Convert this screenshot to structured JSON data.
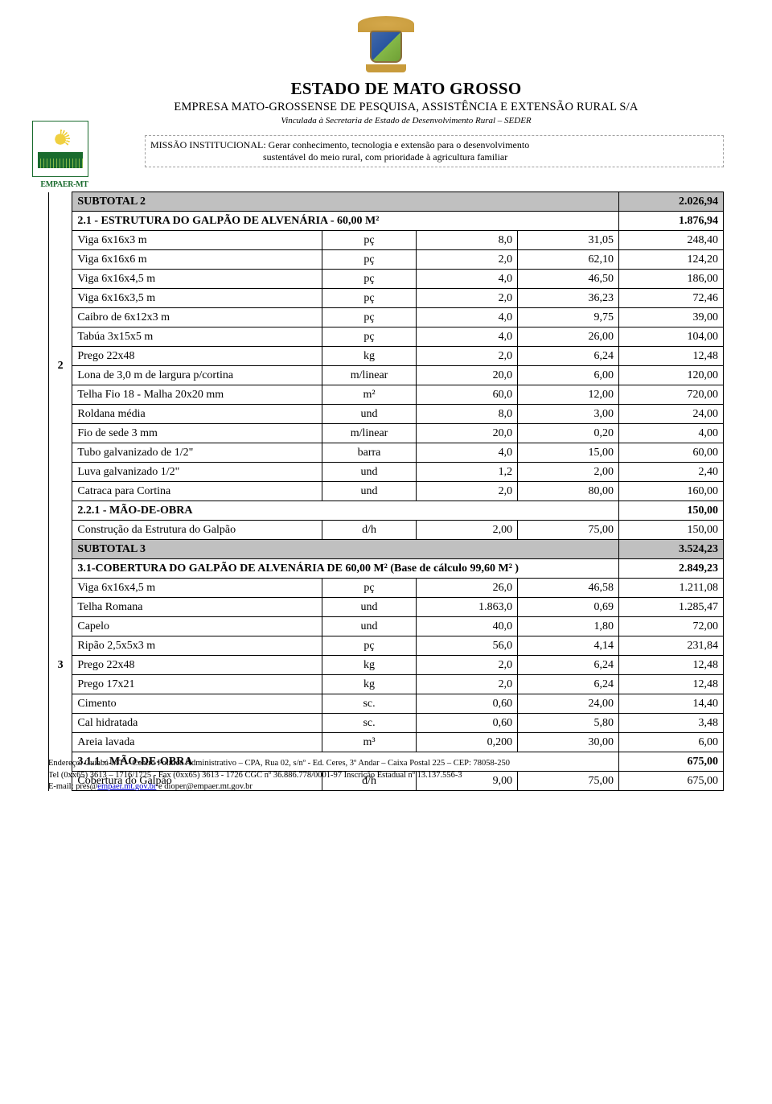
{
  "header": {
    "title": "ESTADO DE  MATO GROSSO",
    "subtitle": "EMPRESA MATO-GROSSENSE DE PESQUISA, ASSISTÊNCIA E EXTENSÃO RURAL S/A",
    "linked": "Vinculada à Secretaria de Estado de Desenvolvimento Rural – SEDER",
    "mission_label": "MISSÃO INSTITUCIONAL:",
    "mission_text1": " Gerar conhecimento, tecnologia  e extensão para  o desenvolvimento",
    "mission_text2": "sustentável do meio rural, com  prioridade  à  agricultura  familiar",
    "logo_text": "EMPAER-MT"
  },
  "groups": [
    {
      "idx": "2",
      "subtotal": {
        "label": "SUBTOTAL 2",
        "value": "2.026,94"
      },
      "sections": [
        {
          "section": {
            "label": "2.1 - ESTRUTURA DO GALPÃO DE ALVENÁRIA - 60,00 M²",
            "value": "1.876,94"
          },
          "rows": [
            {
              "desc": "Viga 6x16x3 m",
              "unit": "pç",
              "qty": "8,0",
              "price": "31,05",
              "total": "248,40"
            },
            {
              "desc": "Viga 6x16x6 m",
              "unit": "pç",
              "qty": "2,0",
              "price": "62,10",
              "total": "124,20"
            },
            {
              "desc": "Viga 6x16x4,5 m",
              "unit": "pç",
              "qty": "4,0",
              "price": "46,50",
              "total": "186,00"
            },
            {
              "desc": "Viga 6x16x3,5 m",
              "unit": "pç",
              "qty": "2,0",
              "price": "36,23",
              "total": "72,46"
            },
            {
              "desc": "Caibro de 6x12x3 m",
              "unit": "pç",
              "qty": "4,0",
              "price": "9,75",
              "total": "39,00"
            },
            {
              "desc": "Tabúa 3x15x5 m",
              "unit": "pç",
              "qty": "4,0",
              "price": "26,00",
              "total": "104,00"
            },
            {
              "desc": "Prego 22x48",
              "unit": "kg",
              "qty": "2,0",
              "price": "6,24",
              "total": "12,48"
            },
            {
              "desc": "Lona de 3,0 m de largura p/cortina",
              "unit": "m/linear",
              "qty": "20,0",
              "price": "6,00",
              "total": "120,00"
            },
            {
              "desc": "Telha Fio 18 - Malha 20x20 mm",
              "unit": "m²",
              "qty": "60,0",
              "price": "12,00",
              "total": "720,00"
            },
            {
              "desc": "Roldana média",
              "unit": "und",
              "qty": "8,0",
              "price": "3,00",
              "total": "24,00"
            },
            {
              "desc": "Fio de sede 3 mm",
              "unit": "m/linear",
              "qty": "20,0",
              "price": "0,20",
              "total": "4,00"
            },
            {
              "desc": "Tubo galvanizado de 1/2\"",
              "unit": "barra",
              "qty": "4,0",
              "price": "15,00",
              "total": "60,00"
            },
            {
              "desc": "Luva galvanizado 1/2\"",
              "unit": "und",
              "qty": "1,2",
              "price": "2,00",
              "total": "2,40"
            },
            {
              "desc": "Catraca para Cortina",
              "unit": "und",
              "qty": "2,0",
              "price": "80,00",
              "total": "160,00"
            }
          ]
        },
        {
          "section": {
            "label": "2.2.1 - MÃO-DE-OBRA",
            "value": "150,00"
          },
          "rows": [
            {
              "desc": "Construção da Estrutura do Galpão",
              "unit": "d/h",
              "qty": "2,00",
              "price": "75,00",
              "total": "150,00"
            }
          ]
        }
      ]
    },
    {
      "idx": "3",
      "subtotal": {
        "label": "SUBTOTAL 3",
        "value": "3.524,23"
      },
      "sections": [
        {
          "section": {
            "label": "3.1-COBERTURA DO GALPÃO DE ALVENÁRIA DE 60,00 M²  (Base de cálculo 99,60 M² )",
            "value": "2.849,23"
          },
          "rows": [
            {
              "desc": "Viga 6x16x4,5 m",
              "unit": "pç",
              "qty": "26,0",
              "price": "46,58",
              "total": "1.211,08"
            },
            {
              "desc": "Telha Romana",
              "unit": "und",
              "qty": "1.863,0",
              "price": "0,69",
              "total": "1.285,47"
            },
            {
              "desc": "Capelo",
              "unit": "und",
              "qty": "40,0",
              "price": "1,80",
              "total": "72,00"
            },
            {
              "desc": "Ripão 2,5x5x3 m",
              "unit": "pç",
              "qty": "56,0",
              "price": "4,14",
              "total": "231,84"
            },
            {
              "desc": "Prego 22x48",
              "unit": "kg",
              "qty": "2,0",
              "price": "6,24",
              "total": "12,48"
            },
            {
              "desc": "Prego 17x21",
              "unit": "kg",
              "qty": "2,0",
              "price": "6,24",
              "total": "12,48"
            },
            {
              "desc": "Cimento",
              "unit": "sc.",
              "qty": "0,60",
              "price": "24,00",
              "total": "14,40"
            },
            {
              "desc": "Cal hidratada",
              "unit": "sc.",
              "qty": "0,60",
              "price": "5,80",
              "total": "3,48"
            },
            {
              "desc": "Areia lavada",
              "unit": "m³",
              "qty": "0,200",
              "price": "30,00",
              "total": "6,00"
            }
          ]
        },
        {
          "section": {
            "label": "3.1.1 - MÃO-DE-OBRA",
            "value": "675,00"
          },
          "rows": [
            {
              "desc": "Cobertura do Galpão",
              "unit": "d/h",
              "qty": "9,00",
              "price": "75,00",
              "total": "675,00"
            }
          ]
        }
      ]
    }
  ],
  "footer": {
    "line1a": "Endereço:   Cuiabá-MT – Centro Político Administrativo – CPA, Rua 02, s/nº - Ed. Ceres, 3º Andar – Caixa Postal 225 – CEP:  78058-250",
    "line2": "Tel (0xx65) 3613 – 1716/1725 - Fax (0xx65) 3613 - 1726 CGC nº 36.886.778/0001-97 Inscrição Estadual nº 13.137.556-3",
    "line3a": "E-mail: pres@",
    "link1": "empaer.mt.gov.br",
    "line3b": " e dioper@empaer.mt.gov.br"
  }
}
